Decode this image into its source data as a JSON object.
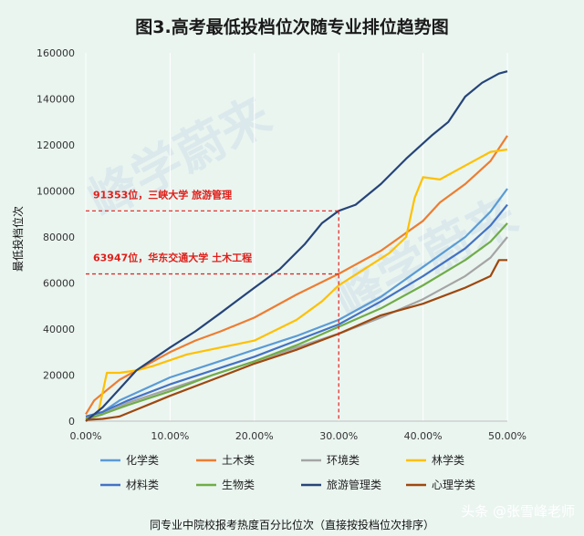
{
  "chart_data": {
    "type": "line",
    "title": "图3.高考最低投档位次随专业排位趋势图",
    "xlabel": "同专业中院校报考热度百分比位次（直接按投档位次排序）",
    "ylabel": "最低投档位次",
    "xlim": [
      0,
      0.5
    ],
    "ylim": [
      0,
      160000
    ],
    "x_ticks": [
      "0.00%",
      "10.00%",
      "20.00%",
      "30.00%",
      "40.00%",
      "50.00%"
    ],
    "y_ticks": [
      "0",
      "20000",
      "40000",
      "60000",
      "80000",
      "100000",
      "120000",
      "140000",
      "160000"
    ],
    "grid": "vertical",
    "legend_position": "bottom",
    "series": [
      {
        "name": "化学类",
        "color": "#5b9bd5",
        "points": [
          [
            0.0,
            2000
          ],
          [
            0.02,
            4000
          ],
          [
            0.04,
            9000
          ],
          [
            0.07,
            14000
          ],
          [
            0.1,
            19000
          ],
          [
            0.15,
            25000
          ],
          [
            0.2,
            31000
          ],
          [
            0.25,
            37000
          ],
          [
            0.3,
            44000
          ],
          [
            0.35,
            54000
          ],
          [
            0.4,
            67000
          ],
          [
            0.45,
            80000
          ],
          [
            0.48,
            91000
          ],
          [
            0.5,
            101000
          ]
        ]
      },
      {
        "name": "土木类",
        "color": "#ed7d31",
        "points": [
          [
            0.0,
            3000
          ],
          [
            0.01,
            9000
          ],
          [
            0.02,
            12000
          ],
          [
            0.04,
            18000
          ],
          [
            0.07,
            24000
          ],
          [
            0.1,
            30000
          ],
          [
            0.13,
            35000
          ],
          [
            0.16,
            39000
          ],
          [
            0.2,
            45000
          ],
          [
            0.25,
            55000
          ],
          [
            0.3,
            64000
          ],
          [
            0.35,
            74000
          ],
          [
            0.4,
            87000
          ],
          [
            0.42,
            95000
          ],
          [
            0.45,
            103000
          ],
          [
            0.48,
            113000
          ],
          [
            0.5,
            124000
          ]
        ]
      },
      {
        "name": "环境类",
        "color": "#a5a5a5",
        "points": [
          [
            0.0,
            500
          ],
          [
            0.02,
            3000
          ],
          [
            0.05,
            8000
          ],
          [
            0.1,
            14000
          ],
          [
            0.15,
            20000
          ],
          [
            0.2,
            26000
          ],
          [
            0.25,
            32000
          ],
          [
            0.3,
            38000
          ],
          [
            0.35,
            45000
          ],
          [
            0.4,
            53000
          ],
          [
            0.45,
            63000
          ],
          [
            0.48,
            71000
          ],
          [
            0.5,
            80000
          ]
        ]
      },
      {
        "name": "林学类",
        "color": "#ffc000",
        "points": [
          [
            0.0,
            1000
          ],
          [
            0.015,
            4000
          ],
          [
            0.025,
            21000
          ],
          [
            0.04,
            21000
          ],
          [
            0.06,
            22000
          ],
          [
            0.08,
            24000
          ],
          [
            0.12,
            29000
          ],
          [
            0.16,
            32000
          ],
          [
            0.2,
            35000
          ],
          [
            0.25,
            44000
          ],
          [
            0.28,
            52000
          ],
          [
            0.3,
            59000
          ],
          [
            0.33,
            66000
          ],
          [
            0.36,
            73000
          ],
          [
            0.38,
            80000
          ],
          [
            0.39,
            97000
          ],
          [
            0.4,
            106000
          ],
          [
            0.42,
            105000
          ],
          [
            0.45,
            111000
          ],
          [
            0.48,
            117000
          ],
          [
            0.5,
            118000
          ]
        ]
      },
      {
        "name": "材料类",
        "color": "#4472c4",
        "points": [
          [
            0.0,
            2000
          ],
          [
            0.02,
            4000
          ],
          [
            0.05,
            9000
          ],
          [
            0.1,
            16000
          ],
          [
            0.15,
            22000
          ],
          [
            0.2,
            28000
          ],
          [
            0.25,
            35000
          ],
          [
            0.3,
            42000
          ],
          [
            0.35,
            52000
          ],
          [
            0.4,
            63000
          ],
          [
            0.45,
            75000
          ],
          [
            0.48,
            85000
          ],
          [
            0.5,
            94000
          ]
        ]
      },
      {
        "name": "生物类",
        "color": "#70ad47",
        "points": [
          [
            0.0,
            1000
          ],
          [
            0.02,
            3000
          ],
          [
            0.05,
            7000
          ],
          [
            0.1,
            13000
          ],
          [
            0.15,
            20000
          ],
          [
            0.2,
            26000
          ],
          [
            0.25,
            33000
          ],
          [
            0.3,
            41000
          ],
          [
            0.35,
            49000
          ],
          [
            0.4,
            59000
          ],
          [
            0.45,
            70000
          ],
          [
            0.48,
            78000
          ],
          [
            0.5,
            86000
          ]
        ]
      },
      {
        "name": "旅游管理类",
        "color": "#264478",
        "points": [
          [
            0.0,
            0
          ],
          [
            0.02,
            6000
          ],
          [
            0.04,
            14000
          ],
          [
            0.06,
            22000
          ],
          [
            0.08,
            27000
          ],
          [
            0.1,
            32000
          ],
          [
            0.13,
            39000
          ],
          [
            0.16,
            47000
          ],
          [
            0.2,
            58000
          ],
          [
            0.23,
            66000
          ],
          [
            0.26,
            77000
          ],
          [
            0.28,
            86000
          ],
          [
            0.3,
            91353
          ],
          [
            0.32,
            94000
          ],
          [
            0.35,
            103000
          ],
          [
            0.38,
            114000
          ],
          [
            0.41,
            124000
          ],
          [
            0.43,
            130000
          ],
          [
            0.45,
            141000
          ],
          [
            0.47,
            147000
          ],
          [
            0.49,
            151000
          ],
          [
            0.5,
            152000
          ]
        ]
      },
      {
        "name": "心理学类",
        "color": "#9e480e",
        "points": [
          [
            0.0,
            500
          ],
          [
            0.02,
            1000
          ],
          [
            0.04,
            2000
          ],
          [
            0.06,
            5000
          ],
          [
            0.08,
            8000
          ],
          [
            0.1,
            11000
          ],
          [
            0.15,
            18000
          ],
          [
            0.2,
            25000
          ],
          [
            0.25,
            31000
          ],
          [
            0.3,
            38000
          ],
          [
            0.35,
            46000
          ],
          [
            0.4,
            51000
          ],
          [
            0.45,
            58000
          ],
          [
            0.48,
            63000
          ],
          [
            0.49,
            70000
          ],
          [
            0.5,
            70000
          ]
        ]
      }
    ],
    "annotations": [
      {
        "text": "91353位，三峡大学 旅游管理",
        "x": 0.3,
        "y": 91353
      },
      {
        "text": "63947位，华东交通大学 土木工程",
        "x": 0.3,
        "y": 63947
      }
    ]
  },
  "watermark": {
    "main": "峰学蔚来",
    "credit": "头条 @张雪峰老师"
  }
}
